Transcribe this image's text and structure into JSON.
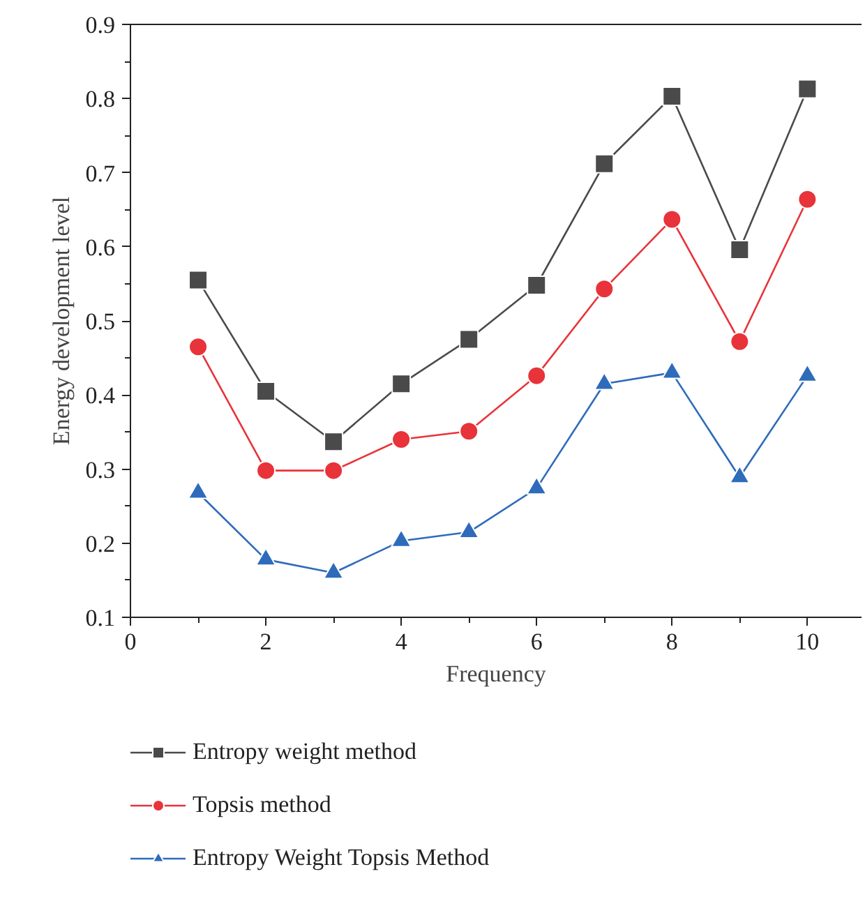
{
  "chart_data": {
    "type": "line",
    "xlabel": "Frequency",
    "ylabel": "Energy development level",
    "x": [
      1,
      2,
      3,
      4,
      5,
      6,
      7,
      8,
      9,
      10
    ],
    "series": [
      {
        "name": "Entropy weight method",
        "color": "#4a4a4a",
        "marker": "square",
        "values": [
          0.555,
          0.405,
          0.337,
          0.415,
          0.475,
          0.548,
          0.712,
          0.803,
          0.596,
          0.813
        ]
      },
      {
        "name": "Topsis method",
        "color": "#e8333a",
        "marker": "circle",
        "values": [
          0.465,
          0.298,
          0.298,
          0.34,
          0.351,
          0.426,
          0.543,
          0.637,
          0.472,
          0.664
        ]
      },
      {
        "name": "Entropy Weight Topsis Method",
        "color": "#2e6bba",
        "marker": "triangle",
        "values": [
          0.268,
          0.178,
          0.16,
          0.203,
          0.215,
          0.274,
          0.415,
          0.43,
          0.289,
          0.426
        ]
      }
    ],
    "xlim": [
      0,
      10.8
    ],
    "xticks": [
      0,
      2,
      4,
      6,
      8,
      10
    ],
    "ylim": [
      0.1,
      0.9
    ],
    "yticks": [
      0.1,
      0.2,
      0.3,
      0.4,
      0.5,
      0.6,
      0.7,
      0.8,
      0.9
    ],
    "grid": false,
    "legend": "bottom",
    "line_style": "solid"
  }
}
